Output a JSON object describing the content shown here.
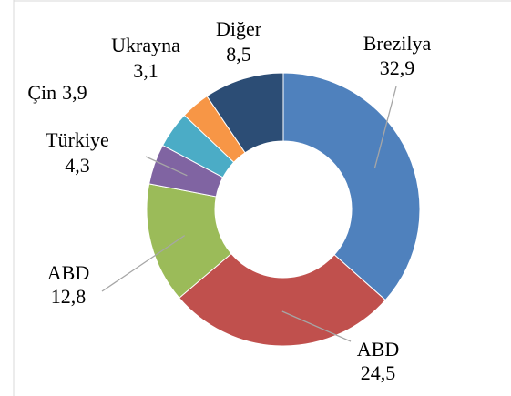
{
  "chart_data": {
    "type": "pie",
    "categories": [
      "Brezilya",
      "ABD",
      "ABD",
      "Türkiye",
      "Çin",
      "Ukrayna",
      "Diğer"
    ],
    "values": [
      32.9,
      24.5,
      12.8,
      4.3,
      3.9,
      3.1,
      8.5
    ],
    "value_labels": [
      "32,9",
      "24,5",
      "12,8",
      "4,3",
      "3,9",
      "3,1",
      "8,5"
    ],
    "colors": [
      "#4f81bd",
      "#c0504d",
      "#9bbb59",
      "#8064a2",
      "#4bacc6",
      "#f79646",
      "#2c4d75"
    ]
  }
}
